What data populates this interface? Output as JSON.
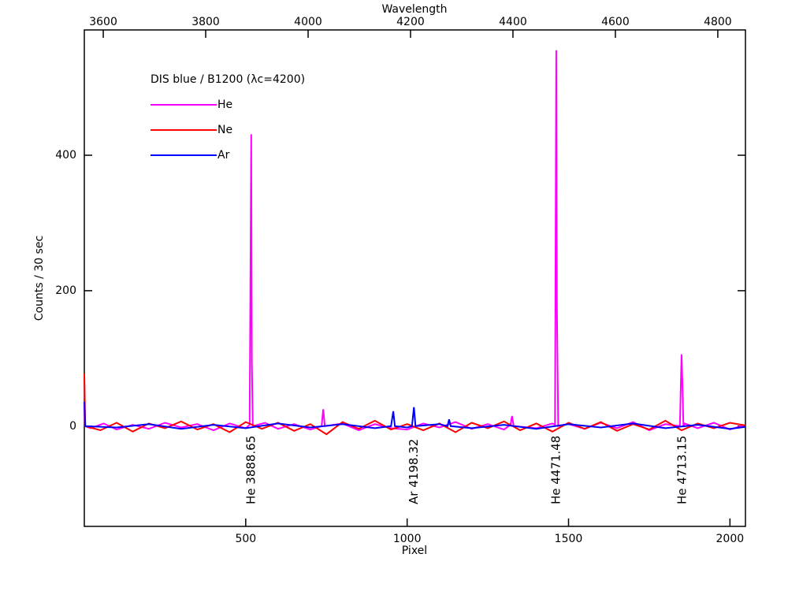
{
  "chart_data": {
    "type": "line",
    "legend_title": "DIS blue / B1200 (λc=4200)",
    "xlabel": "Pixel",
    "ylabel": "Counts / 30 sec",
    "x2label": "Wavelength",
    "xlim": [
      0,
      2048
    ],
    "xticks": [
      500,
      1000,
      1500,
      2000
    ],
    "x2lim": [
      3563,
      4854
    ],
    "x2ticks": [
      3600,
      3800,
      4000,
      4200,
      4400,
      4600,
      4800
    ],
    "ylim": [
      -148,
      585
    ],
    "yticks": [
      0,
      200,
      400
    ],
    "series": [
      {
        "name": "He",
        "color": "#ff00ff",
        "x": [
          0,
          2,
          20,
          60,
          100,
          150,
          200,
          250,
          300,
          350,
          400,
          450,
          500,
          512,
          517,
          519,
          522,
          560,
          600,
          650,
          700,
          735,
          740,
          745,
          800,
          850,
          900,
          950,
          1000,
          1050,
          1100,
          1150,
          1200,
          1250,
          1300,
          1320,
          1325,
          1330,
          1400,
          1450,
          1458,
          1462,
          1464,
          1468,
          1500,
          1550,
          1600,
          1650,
          1700,
          1750,
          1800,
          1845,
          1850,
          1853,
          1856,
          1860,
          1900,
          1950,
          2000,
          2048
        ],
        "values": [
          30,
          0,
          -3,
          4,
          -5,
          2,
          -4,
          5,
          -2,
          3,
          -6,
          4,
          -3,
          2,
          431,
          95,
          0,
          5,
          -4,
          3,
          -5,
          0,
          25,
          0,
          4,
          -6,
          3,
          -3,
          -5,
          4,
          -2,
          6,
          -4,
          3,
          -5,
          2,
          15,
          0,
          -3,
          4,
          2,
          555,
          170,
          0,
          3,
          -4,
          5,
          -3,
          6,
          -6,
          3,
          0,
          106,
          60,
          0,
          4,
          -3,
          5,
          -5,
          2
        ]
      },
      {
        "name": "Ne",
        "color": "#ff0000",
        "x": [
          0,
          3,
          50,
          100,
          150,
          200,
          250,
          300,
          350,
          400,
          450,
          500,
          550,
          600,
          650,
          700,
          750,
          800,
          850,
          900,
          950,
          1000,
          1050,
          1100,
          1150,
          1200,
          1250,
          1300,
          1350,
          1400,
          1450,
          1500,
          1550,
          1600,
          1650,
          1700,
          1750,
          1800,
          1850,
          1900,
          1950,
          2000,
          2048
        ],
        "values": [
          78,
          0,
          -6,
          5,
          -8,
          4,
          -3,
          7,
          -5,
          3,
          -9,
          6,
          -4,
          5,
          -7,
          3,
          -12,
          6,
          -4,
          8,
          -5,
          3,
          -6,
          4,
          -9,
          5,
          -3,
          7,
          -6,
          4,
          -8,
          5,
          -4,
          6,
          -7,
          3,
          -5,
          8,
          -6,
          4,
          -3,
          5,
          1
        ]
      },
      {
        "name": "Ar",
        "color": "#0000ff",
        "x": [
          0,
          3,
          100,
          200,
          300,
          400,
          500,
          600,
          700,
          800,
          900,
          950,
          957,
          962,
          1000,
          1015,
          1021,
          1026,
          1100,
          1125,
          1130,
          1135,
          1200,
          1300,
          1400,
          1500,
          1600,
          1700,
          1800,
          1900,
          2000,
          2048
        ],
        "values": [
          36,
          0,
          -2,
          3,
          -4,
          2,
          -3,
          4,
          -2,
          3,
          -3,
          0,
          22,
          0,
          -2,
          0,
          28,
          0,
          3,
          0,
          10,
          0,
          -3,
          2,
          -4,
          3,
          -2,
          4,
          -3,
          2,
          -4,
          -1
        ]
      }
    ],
    "annotations": [
      {
        "text": "He 3888.65",
        "x": 517,
        "color": "#ff00ff"
      },
      {
        "text": "Ar 4198.32",
        "x": 1021,
        "color": "#0000ff"
      },
      {
        "text": "He 4471.48",
        "x": 1462,
        "color": "#ff00ff"
      },
      {
        "text": "He 4713.15",
        "x": 1853,
        "color": "#ff00ff"
      }
    ]
  }
}
